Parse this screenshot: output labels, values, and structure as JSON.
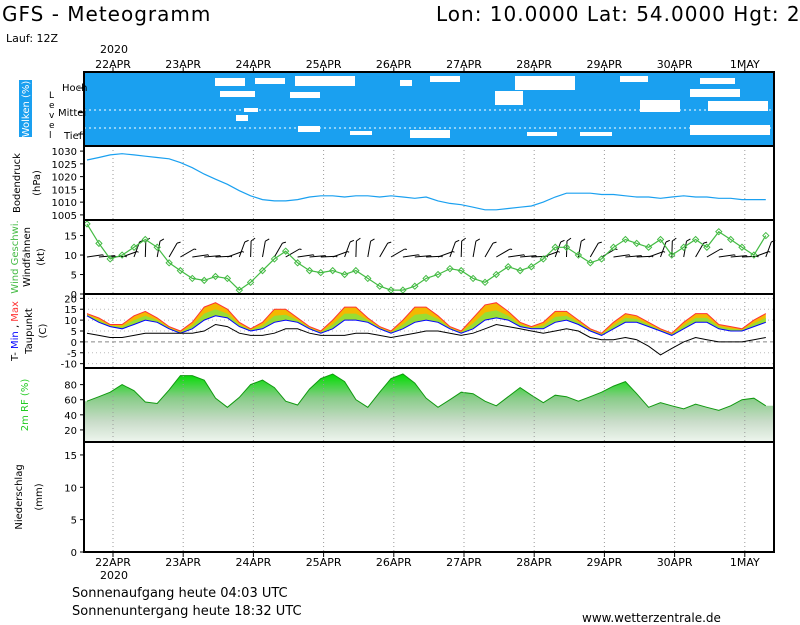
{
  "header": {
    "title": "GFS - Meteogramm",
    "coords": "Lon: 10.0000 Lat: 54.0000 Hgt: 2",
    "run": "Lauf: 12Z",
    "year": "2020"
  },
  "footer": {
    "sunrise": "Sonnenaufgang heute 04:03 UTC",
    "sunset": "Sonnenuntergang heute 18:32 UTC",
    "site": "www.wetterzentrale.de"
  },
  "colors": {
    "cloud": "#1aa0f0",
    "pressure": "#1aa0f0",
    "wind": "#44bb44",
    "tmax": "#ff3333",
    "tmin": "#0000ff",
    "dew": "#000000",
    "temp_fill_warm": "#f4b800",
    "temp_fill_cool": "#99dd33",
    "rh": "#22cc22"
  },
  "chart_data": [
    {
      "type": "area",
      "panel": "clouds",
      "ylabel_parts": [
        "Wolken",
        "(%)"
      ],
      "level_label": "Level",
      "levels": [
        "Hoch",
        "Mittel",
        "Tief"
      ],
      "x_ticks": [
        "22APR",
        "23APR",
        "24APR",
        "25APR",
        "26APR",
        "27APR",
        "28APR",
        "29APR",
        "30APR",
        "1MAY"
      ]
    },
    {
      "type": "line",
      "panel": "pressure",
      "ylabel_parts": [
        "Bodendruck",
        "(hPa)"
      ],
      "ylim": [
        1003,
        1032
      ],
      "y_ticks": [
        1005,
        1010,
        1015,
        1020,
        1025,
        1030
      ],
      "x_days": [
        0,
        0.17,
        0.33,
        0.5,
        0.67,
        0.83,
        1,
        1.17,
        1.33,
        1.5,
        1.67,
        1.83,
        2,
        2.17,
        2.33,
        2.5,
        2.67,
        2.83,
        3,
        3.17,
        3.33,
        3.5,
        3.67,
        3.83,
        4,
        4.17,
        4.33,
        4.5,
        4.67,
        4.83,
        5,
        5.17,
        5.33,
        5.5,
        5.67,
        5.83,
        6,
        6.17,
        6.33,
        6.5,
        6.67,
        6.83,
        7,
        7.17,
        7.33,
        7.5,
        7.67,
        7.83,
        8,
        8.17,
        8.33,
        8.5,
        8.67,
        8.83,
        9,
        9.17,
        9.33,
        9.5,
        9.67
      ],
      "values": [
        1026.5,
        1027.5,
        1028.5,
        1029,
        1028.5,
        1028,
        1027.5,
        1027,
        1025.5,
        1023.5,
        1021,
        1019,
        1017,
        1014.5,
        1012.5,
        1011,
        1010.5,
        1010.5,
        1011,
        1012,
        1012.5,
        1012.5,
        1012,
        1012.5,
        1012.5,
        1012,
        1012.5,
        1012,
        1011.5,
        1012,
        1010.5,
        1009.5,
        1009,
        1008,
        1007,
        1007,
        1007.5,
        1008,
        1008.5,
        1010,
        1012,
        1013.5,
        1013.5,
        1013.5,
        1013,
        1013,
        1012.5,
        1012,
        1012,
        1011.5,
        1012,
        1012.5,
        1012,
        1012,
        1011.5,
        1011.5,
        1011,
        1011,
        1011
      ]
    },
    {
      "type": "line",
      "panel": "wind",
      "ylabel_parts": [
        "Wind",
        "Geschwi.",
        "Windfahnen",
        "(kt)"
      ],
      "ylim": [
        0,
        19
      ],
      "y_ticks": [
        0,
        5,
        10,
        15
      ],
      "x_days": [
        0,
        0.17,
        0.33,
        0.5,
        0.67,
        0.83,
        1,
        1.17,
        1.33,
        1.5,
        1.67,
        1.83,
        2,
        2.17,
        2.33,
        2.5,
        2.67,
        2.83,
        3,
        3.17,
        3.33,
        3.5,
        3.67,
        3.83,
        4,
        4.17,
        4.33,
        4.5,
        4.67,
        4.83,
        5,
        5.17,
        5.33,
        5.5,
        5.67,
        5.83,
        6,
        6.17,
        6.33,
        6.5,
        6.67,
        6.83,
        7,
        7.17,
        7.33,
        7.5,
        7.67,
        7.83,
        8,
        8.17,
        8.33,
        8.5,
        8.67,
        8.83,
        9,
        9.17,
        9.33,
        9.5,
        9.67
      ],
      "values": [
        18,
        13,
        9,
        10,
        12,
        14,
        12,
        8,
        6,
        4,
        3.5,
        4.5,
        4,
        1,
        3,
        6,
        9,
        11,
        8,
        6,
        5.5,
        6,
        5,
        6,
        4,
        2,
        1,
        1,
        2,
        4,
        5,
        6.5,
        6,
        4,
        3,
        5,
        7,
        6,
        7,
        9,
        12,
        12,
        10,
        8,
        9,
        12,
        14,
        13,
        12,
        14,
        10,
        12,
        14,
        12,
        16,
        14,
        12,
        10,
        15
      ]
    },
    {
      "type": "area",
      "panel": "temperature",
      "ylabel_parts": [
        "T-",
        "Min",
        ",",
        "Max",
        "Taupunkt",
        "(C)"
      ],
      "ylim": [
        -12,
        22
      ],
      "y_ticks": [
        -10,
        -5,
        0,
        5,
        10,
        15,
        20
      ],
      "x_days": [
        0,
        0.17,
        0.33,
        0.5,
        0.67,
        0.83,
        1,
        1.17,
        1.33,
        1.5,
        1.67,
        1.83,
        2,
        2.17,
        2.33,
        2.5,
        2.67,
        2.83,
        3,
        3.17,
        3.33,
        3.5,
        3.67,
        3.83,
        4,
        4.17,
        4.33,
        4.5,
        4.67,
        4.83,
        5,
        5.17,
        5.33,
        5.5,
        5.67,
        5.83,
        6,
        6.17,
        6.33,
        6.5,
        6.67,
        6.83,
        7,
        7.17,
        7.33,
        7.5,
        7.67,
        7.83,
        8,
        8.17,
        8.33,
        8.5,
        8.67,
        8.83,
        9,
        9.17,
        9.33,
        9.5,
        9.67
      ],
      "tmax": [
        13,
        11,
        8,
        8,
        12,
        14,
        11,
        7,
        5,
        9,
        16,
        18,
        15,
        9,
        6,
        9,
        15,
        15,
        11,
        7,
        5,
        10,
        16,
        16,
        11,
        7,
        5,
        10,
        16,
        16,
        12,
        7,
        5,
        11,
        17,
        18,
        14,
        9,
        7,
        9,
        14,
        14,
        10,
        6,
        4,
        9,
        13,
        12,
        9,
        6,
        4,
        9,
        13,
        13,
        8,
        7,
        6,
        10,
        13
      ],
      "tmin": [
        12,
        9,
        7,
        6,
        8,
        10,
        9,
        6,
        4,
        6,
        10,
        12,
        11,
        7,
        5,
        6,
        9,
        10,
        9,
        6,
        4,
        6,
        10,
        10,
        9,
        6,
        4,
        6,
        9,
        10,
        9,
        6,
        4,
        6,
        10,
        11,
        10,
        7,
        6,
        6,
        9,
        10,
        8,
        5,
        3,
        6,
        9,
        9,
        7,
        5,
        3,
        6,
        9,
        9,
        6,
        5,
        5,
        7,
        9
      ],
      "dewpoint": [
        4,
        3,
        2,
        2,
        3,
        4,
        4,
        4,
        4,
        4,
        5,
        8,
        7,
        4,
        3,
        3,
        4,
        6,
        6,
        4,
        3,
        3,
        3,
        4,
        4,
        3,
        2,
        3,
        4,
        5,
        5,
        4,
        3,
        4,
        6,
        8,
        7,
        6,
        5,
        4,
        5,
        6,
        5,
        2,
        1,
        1,
        2,
        1,
        -2,
        -6,
        -3,
        0,
        2,
        1,
        0,
        0,
        0,
        1,
        2
      ]
    },
    {
      "type": "area",
      "panel": "humidity",
      "ylabel_parts": [
        "2m",
        "RF",
        "(%)"
      ],
      "ylim": [
        4,
        102
      ],
      "y_ticks": [
        20,
        40,
        60,
        80
      ],
      "x_days": [
        0,
        0.17,
        0.33,
        0.5,
        0.67,
        0.83,
        1,
        1.17,
        1.33,
        1.5,
        1.67,
        1.83,
        2,
        2.17,
        2.33,
        2.5,
        2.67,
        2.83,
        3,
        3.17,
        3.33,
        3.5,
        3.67,
        3.83,
        4,
        4.17,
        4.33,
        4.5,
        4.67,
        4.83,
        5,
        5.17,
        5.33,
        5.5,
        5.67,
        5.83,
        6,
        6.17,
        6.33,
        6.5,
        6.67,
        6.83,
        7,
        7.17,
        7.33,
        7.5,
        7.67,
        7.83,
        8,
        8.17,
        8.33,
        8.5,
        8.67,
        8.83,
        9,
        9.17,
        9.33,
        9.5,
        9.67
      ],
      "values": [
        58,
        64,
        70,
        80,
        72,
        57,
        55,
        73,
        92,
        92,
        86,
        62,
        50,
        63,
        80,
        86,
        76,
        58,
        53,
        74,
        88,
        94,
        84,
        60,
        50,
        70,
        88,
        94,
        82,
        62,
        50,
        60,
        70,
        68,
        58,
        52,
        64,
        76,
        66,
        56,
        66,
        64,
        58,
        64,
        70,
        78,
        84,
        68,
        50,
        56,
        52,
        48,
        54,
        50,
        46,
        52,
        60,
        62,
        52
      ]
    },
    {
      "type": "bar",
      "panel": "precipitation",
      "ylabel_parts": [
        "Niederschlag",
        "(mm)"
      ],
      "ylim": [
        0,
        17
      ],
      "y_ticks": [
        0,
        5,
        10,
        15
      ],
      "values": []
    }
  ]
}
